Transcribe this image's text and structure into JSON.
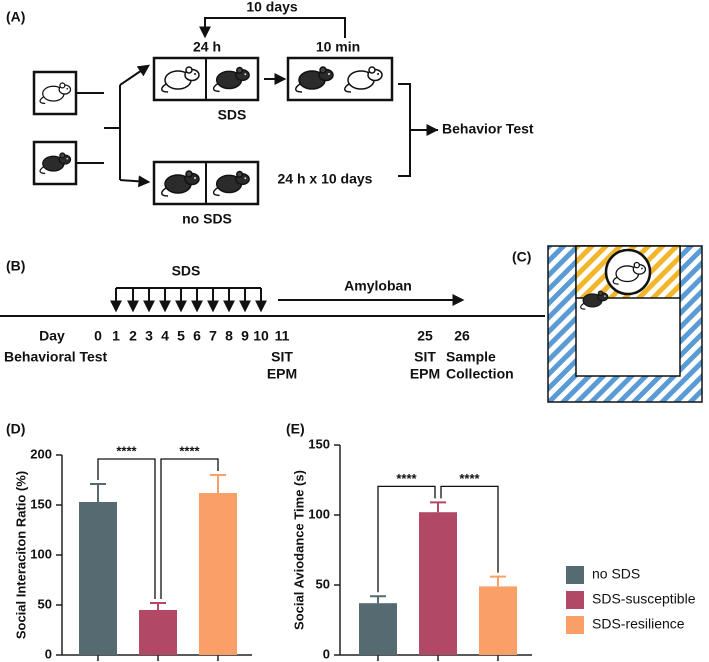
{
  "panel_a": {
    "label": "(A)",
    "interval": "10 days",
    "housing": "24 h",
    "exposure": "10 min",
    "sds": "SDS",
    "no_sds_duration": "24 h x 10 days",
    "no_sds": "no SDS",
    "outcome": "Behavior Test"
  },
  "panel_b": {
    "label": "(B)",
    "sds": "SDS",
    "treatment": "Amyloban",
    "day": "Day",
    "days": [
      0,
      1,
      2,
      3,
      4,
      5,
      6,
      7,
      8,
      9,
      10,
      11,
      25,
      26
    ],
    "baseline": "Behavioral Test",
    "test_1": [
      "SIT",
      "EPM"
    ],
    "test_2": [
      "SIT",
      "EPM"
    ],
    "sample": [
      "Sample",
      "Collection"
    ]
  },
  "panel_c": {
    "label": "(C)"
  },
  "chart_data": [
    {
      "type": "bar",
      "title": "(D)",
      "ylabel": "Social Interaciton Ratio (%)",
      "categories": [
        null,
        null,
        null
      ],
      "values": [
        153,
        45,
        162
      ],
      "errors": [
        18,
        7,
        18
      ],
      "ylim": [
        0,
        200
      ],
      "yticks": [
        0,
        50,
        100,
        150,
        200
      ],
      "significance": [
        "****",
        "****"
      ]
    },
    {
      "type": "bar",
      "title": "(E)",
      "ylabel": "Social Aviodance Time (s)",
      "categories": [
        null,
        null,
        null
      ],
      "values": [
        37,
        102,
        49
      ],
      "errors": [
        5,
        7,
        7
      ],
      "ylim": [
        0,
        150
      ],
      "yticks": [
        0,
        50,
        100,
        150
      ],
      "significance": [
        "****",
        "****"
      ]
    }
  ],
  "legend": {
    "items": [
      {
        "name": "no SDS",
        "color": "#566a72"
      },
      {
        "name": "SDS-susceptible",
        "color": "#b04866"
      },
      {
        "name": "SDS-resilience",
        "color": "#f9a068"
      }
    ]
  }
}
